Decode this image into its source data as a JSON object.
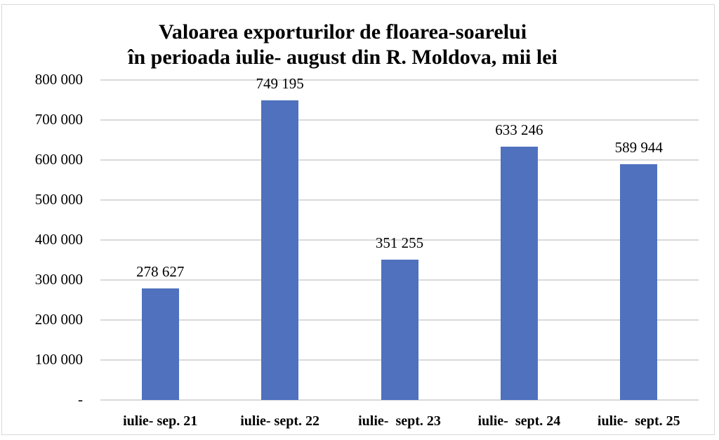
{
  "chart_data": {
    "type": "bar",
    "title": "Valoarea exporturilor de floarea-soarelui în perioada iulie- august din R. Moldova, mii lei",
    "title_lines": [
      "Valoarea exporturilor de floarea-soarelui",
      "în perioada iulie- august din R. Moldova, mii lei"
    ],
    "categories": [
      "iulie- sep. 21",
      "iulie- sept. 22",
      "iulie-  sept. 23",
      "iulie-  sept. 24",
      "iulie-  sept. 25"
    ],
    "values": [
      278627,
      749195,
      351255,
      633246,
      589944
    ],
    "value_labels": [
      "278 627",
      "749 195",
      "351 255",
      "633 246",
      "589 944"
    ],
    "xlabel": "",
    "ylabel": "",
    "ylim": [
      0,
      800000
    ],
    "yticks": [
      0,
      100000,
      200000,
      300000,
      400000,
      500000,
      600000,
      700000,
      800000
    ],
    "ytick_labels": [
      "-",
      "100 000",
      "200 000",
      "300 000",
      "400 000",
      "500 000",
      "600 000",
      "700 000",
      "800 000"
    ],
    "grid": true,
    "legend": null,
    "bar_color": "#4f71be"
  }
}
